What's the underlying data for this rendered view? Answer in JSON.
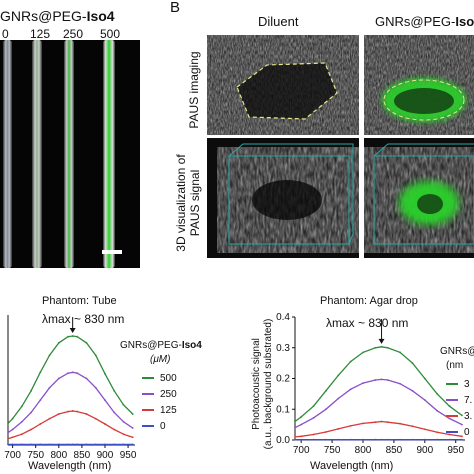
{
  "panelA": {
    "title_prefix": "GNRs@PEG-",
    "title_bold": "Iso4",
    "concentrations": [
      "0",
      "125",
      "250",
      "500"
    ]
  },
  "panelB": {
    "label": "B",
    "col_diluent": "Diluent",
    "col_gnrs_prefix": "GNRs@PEG-",
    "col_gnrs_bold": "Iso",
    "row1_label": "PAUS imaging",
    "row2_label_line1": "3D visualization of",
    "row2_label_line2": "PAUS signal"
  },
  "colors": {
    "green": "#2e8b3a",
    "purple": "#8a4fc8",
    "red": "#d63a3a",
    "blue": "#3d4fc4",
    "signal_green": "#2cd12c"
  },
  "chart_data": [
    {
      "type": "line",
      "title": "Phantom: Tube",
      "xlabel": "Wavelength (nm)",
      "ylabel": "",
      "xlim": [
        690,
        965
      ],
      "ylim": [
        0,
        0.42
      ],
      "xticks": [
        "700",
        "750",
        "800",
        "850",
        "900",
        "950"
      ],
      "annotation": "λmax ~ 830 nm",
      "annotation_x": 830,
      "legend_title_prefix": "GNRs@PEG-",
      "legend_title_bold": "Iso4",
      "legend_unit": "(μM)",
      "legend_position": "right",
      "x": [
        690,
        700,
        720,
        740,
        760,
        780,
        800,
        820,
        830,
        840,
        860,
        880,
        900,
        920,
        940,
        960
      ],
      "series": [
        {
          "name": "500",
          "color": "#2e8b3a",
          "values": [
            0.07,
            0.085,
            0.125,
            0.175,
            0.235,
            0.29,
            0.33,
            0.35,
            0.352,
            0.35,
            0.33,
            0.29,
            0.23,
            0.175,
            0.13,
            0.1
          ]
        },
        {
          "name": "250",
          "color": "#8a4fc8",
          "values": [
            0.04,
            0.05,
            0.075,
            0.105,
            0.145,
            0.185,
            0.215,
            0.232,
            0.235,
            0.232,
            0.215,
            0.185,
            0.145,
            0.105,
            0.075,
            0.055
          ]
        },
        {
          "name": "125",
          "color": "#d63a3a",
          "values": [
            0.02,
            0.025,
            0.035,
            0.05,
            0.068,
            0.085,
            0.1,
            0.108,
            0.11,
            0.108,
            0.1,
            0.085,
            0.068,
            0.05,
            0.035,
            0.025
          ]
        },
        {
          "name": "0",
          "color": "#3d4fc4",
          "values": [
            0.002,
            0.002,
            0.002,
            0.002,
            0.002,
            0.002,
            0.002,
            0.002,
            0.002,
            0.002,
            0.002,
            0.002,
            0.002,
            0.002,
            0.002,
            0.002
          ]
        }
      ]
    },
    {
      "type": "line",
      "title": "Phantom: Agar drop",
      "xlabel": "Wavelength (nm)",
      "ylabel_line1": "Photoacoustic signal",
      "ylabel_line2": "(a.u., background substrated)",
      "xlim": [
        690,
        965
      ],
      "ylim": [
        0,
        0.4
      ],
      "yticks": [
        "0.0",
        "0.1",
        "0.2",
        "0.3",
        "0.4"
      ],
      "xticks": [
        "700",
        "750",
        "800",
        "850",
        "900",
        "950"
      ],
      "annotation": "λmax ~ 830 nm",
      "annotation_x": 830,
      "legend_title_prefix": "GNRs@P",
      "legend_unit": "nm",
      "legend_position": "right",
      "x": [
        690,
        700,
        720,
        740,
        760,
        780,
        800,
        820,
        830,
        840,
        860,
        880,
        900,
        920,
        940,
        960
      ],
      "series": [
        {
          "name": "3",
          "color": "#2e8b3a",
          "values": [
            0.06,
            0.075,
            0.11,
            0.16,
            0.21,
            0.255,
            0.285,
            0.3,
            0.303,
            0.3,
            0.285,
            0.25,
            0.2,
            0.15,
            0.11,
            0.08
          ]
        },
        {
          "name": "7.",
          "color": "#8a4fc8",
          "values": [
            0.04,
            0.05,
            0.072,
            0.1,
            0.135,
            0.165,
            0.185,
            0.195,
            0.197,
            0.195,
            0.183,
            0.16,
            0.13,
            0.095,
            0.07,
            0.05
          ]
        },
        {
          "name": "3.",
          "color": "#d63a3a",
          "values": [
            0.01,
            0.012,
            0.018,
            0.026,
            0.036,
            0.046,
            0.054,
            0.058,
            0.06,
            0.058,
            0.053,
            0.045,
            0.035,
            0.025,
            0.018,
            0.012
          ]
        },
        {
          "name": "0",
          "color": "#3d4fc4",
          "values": [
            0.001,
            0.001,
            0.001,
            0.001,
            0.001,
            0.001,
            0.001,
            0.001,
            0.001,
            0.001,
            0.001,
            0.001,
            0.001,
            0.001,
            0.001,
            0.001
          ]
        }
      ]
    }
  ]
}
